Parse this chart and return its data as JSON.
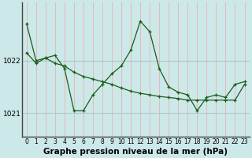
{
  "title": "Graphe pression niveau de la mer (hPa)",
  "background_color": "#cce8e8",
  "grid_color_v": "#e8b8b8",
  "grid_color_h": "#aacccc",
  "line_color": "#1a5c1a",
  "xlim": [
    -0.5,
    23.5
  ],
  "ylim": [
    1020.55,
    1023.1
  ],
  "yticks": [
    1021,
    1022
  ],
  "xticks": [
    0,
    1,
    2,
    3,
    4,
    5,
    6,
    7,
    8,
    9,
    10,
    11,
    12,
    13,
    14,
    15,
    16,
    17,
    18,
    19,
    20,
    21,
    22,
    23
  ],
  "line1_x": [
    0,
    1,
    2,
    3,
    4,
    5,
    6,
    7,
    8,
    9,
    10,
    11,
    12,
    13,
    14,
    15,
    16,
    17,
    18,
    19,
    20,
    21,
    22,
    23
  ],
  "line1_y": [
    1022.7,
    1022.0,
    1022.05,
    1022.1,
    1021.85,
    1021.05,
    1021.05,
    1021.35,
    1021.55,
    1021.75,
    1021.9,
    1022.2,
    1022.75,
    1022.55,
    1021.85,
    1021.5,
    1021.4,
    1021.35,
    1021.05,
    1021.3,
    1021.35,
    1021.3,
    1021.55,
    1021.6
  ],
  "line2_x": [
    0,
    1,
    2,
    3,
    4,
    5,
    6,
    7,
    8,
    9,
    10,
    11,
    12,
    13,
    14,
    15,
    16,
    17,
    18,
    19,
    20,
    21,
    22,
    23
  ],
  "line2_y": [
    1022.15,
    1021.95,
    1022.05,
    1021.95,
    1021.9,
    1021.78,
    1021.7,
    1021.65,
    1021.6,
    1021.55,
    1021.48,
    1021.42,
    1021.38,
    1021.35,
    1021.32,
    1021.3,
    1021.28,
    1021.25,
    1021.25,
    1021.25,
    1021.25,
    1021.25,
    1021.25,
    1021.55
  ],
  "tick_fontsize": 5.5,
  "ytick_fontsize": 6.5,
  "title_fontsize": 7.5
}
